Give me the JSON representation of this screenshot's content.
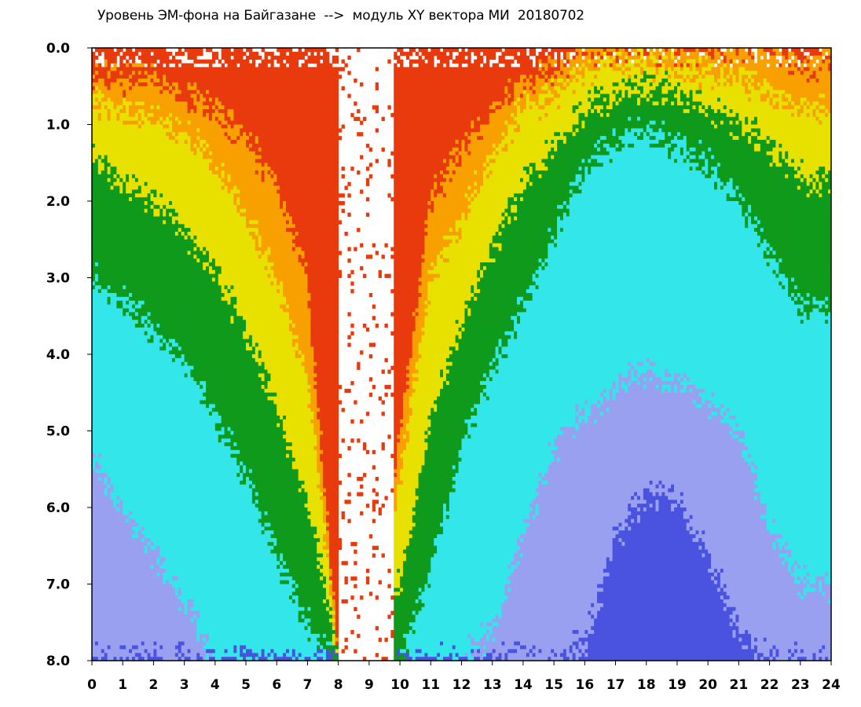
{
  "chart_data": {
    "type": "heatmap",
    "title": "Уровень ЭМ-фона на Байгазане  -->  модуль XY вектора МИ  20180702",
    "xlabel": "",
    "ylabel": "",
    "xlim": [
      0,
      24
    ],
    "ylim": [
      8.0,
      0.0
    ],
    "y_axis_inverted": true,
    "grid": false,
    "x_ticks": [
      "0",
      "1",
      "2",
      "3",
      "4",
      "5",
      "6",
      "7",
      "8",
      "9",
      "10",
      "11",
      "12",
      "13",
      "14",
      "15",
      "16",
      "17",
      "18",
      "19",
      "20",
      "21",
      "22",
      "23",
      "24"
    ],
    "y_ticks": [
      "0.0",
      "1.0",
      "2.0",
      "3.0",
      "4.0",
      "5.0",
      "6.0",
      "7.0",
      "8.0"
    ],
    "color_scale": [
      {
        "level": "highest",
        "color": "#4a52e0"
      },
      {
        "level": "high",
        "color": "#9aa0f0"
      },
      {
        "level": "mid-high",
        "color": "#33e6ea"
      },
      {
        "level": "mid",
        "color": "#0f9a1c"
      },
      {
        "level": "mid-low",
        "color": "#e8e100"
      },
      {
        "level": "low",
        "color": "#f7a000"
      },
      {
        "level": "lowest",
        "color": "#e83a0c"
      }
    ],
    "hours": [
      0,
      1,
      2,
      3,
      4,
      5,
      6,
      7,
      8,
      9,
      10,
      11,
      12,
      13,
      14,
      15,
      16,
      17,
      18,
      19,
      20,
      21,
      22,
      23
    ],
    "boundaries": {
      "red_to_orange": [
        0.4,
        0.4,
        0.4,
        0.6,
        0.8,
        1.2,
        1.8,
        3.0,
        8.0,
        8.0,
        5.0,
        2.0,
        1.3,
        0.8,
        0.4,
        0.3,
        0.0,
        0.0,
        0.0,
        0.0,
        0.0,
        0.0,
        0.1,
        0.2
      ],
      "orange_to_yellow": [
        0.7,
        0.8,
        0.9,
        1.1,
        1.5,
        2.2,
        3.0,
        4.3,
        8.0,
        8.0,
        5.6,
        3.0,
        2.2,
        1.4,
        0.8,
        0.6,
        0.3,
        0.2,
        0.2,
        0.3,
        0.3,
        0.4,
        0.6,
        0.8
      ],
      "yellow_to_green": [
        1.4,
        1.8,
        2.0,
        2.4,
        2.9,
        3.7,
        4.7,
        5.9,
        8.0,
        8.0,
        7.0,
        4.8,
        3.6,
        2.6,
        1.8,
        1.3,
        0.8,
        0.6,
        0.5,
        0.6,
        0.8,
        1.0,
        1.3,
        1.7
      ],
      "green_to_cyan": [
        3.0,
        3.3,
        3.7,
        4.1,
        4.8,
        5.6,
        6.6,
        7.5,
        8.0,
        8.0,
        8.0,
        6.8,
        5.2,
        4.2,
        3.4,
        2.4,
        1.6,
        1.2,
        1.1,
        1.3,
        1.5,
        2.0,
        2.7,
        3.4
      ],
      "cyan_to_violet": [
        5.4,
        6.0,
        6.6,
        7.2,
        8.0,
        8.0,
        8.0,
        8.0,
        8.0,
        8.0,
        8.0,
        8.0,
        8.0,
        7.6,
        6.4,
        5.2,
        4.8,
        4.4,
        4.2,
        4.4,
        4.6,
        5.0,
        6.2,
        7.0
      ],
      "violet_to_blue": [
        8.0,
        8.0,
        8.0,
        8.0,
        8.0,
        8.0,
        8.0,
        8.0,
        8.0,
        8.0,
        8.0,
        8.0,
        8.0,
        8.0,
        8.0,
        8.0,
        7.8,
        6.4,
        5.8,
        5.9,
        6.6,
        7.6,
        8.0,
        8.0
      ]
    },
    "gap_hours": [
      8.0,
      9.8
    ]
  }
}
